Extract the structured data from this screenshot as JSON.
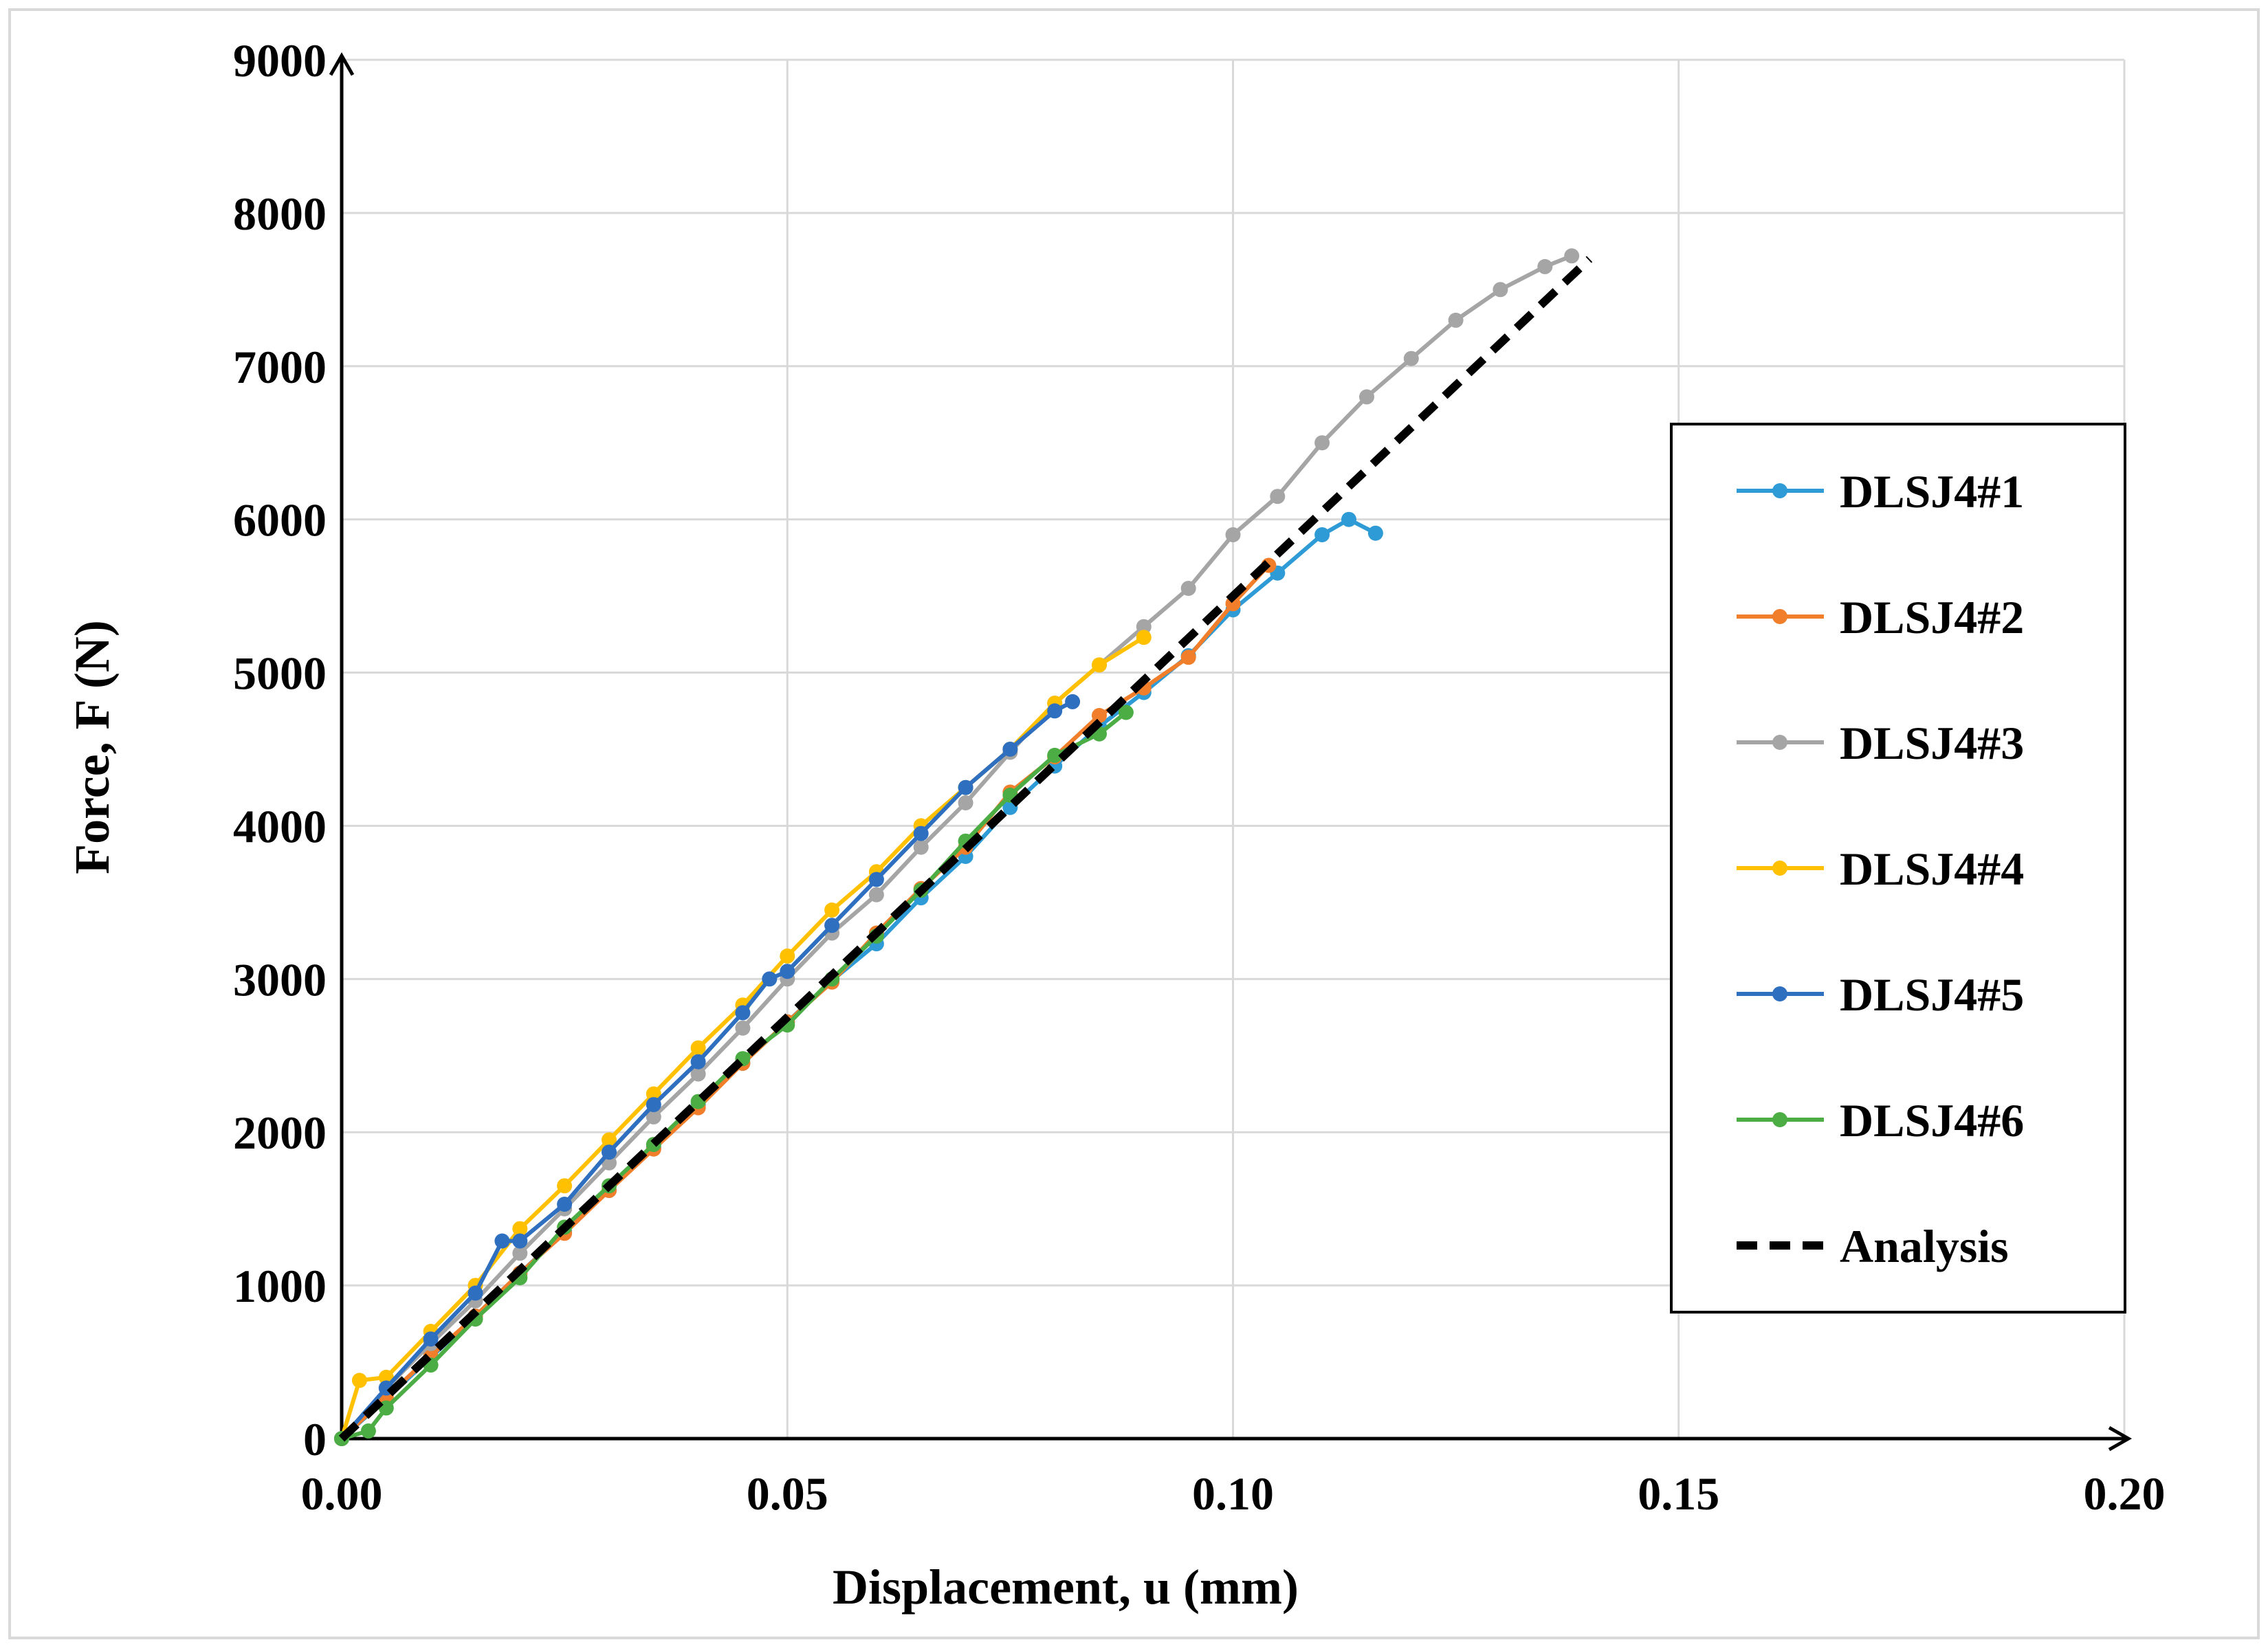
{
  "chart_data": {
    "type": "line",
    "title": "",
    "xlabel": "Displacement, u (mm)",
    "ylabel": "Force, F (N)",
    "xlim": [
      0,
      0.2
    ],
    "ylim": [
      0,
      9000
    ],
    "x_ticks": [
      0,
      0.05,
      0.1,
      0.15,
      0.2
    ],
    "x_tick_labels": [
      "0.00",
      "0.05",
      "0.10",
      "0.15",
      "0.20"
    ],
    "y_ticks": [
      0,
      1000,
      2000,
      3000,
      4000,
      5000,
      6000,
      7000,
      8000,
      9000
    ],
    "y_tick_labels": [
      "0",
      "1000",
      "2000",
      "3000",
      "4000",
      "5000",
      "6000",
      "7000",
      "8000",
      "9000"
    ],
    "grid": true,
    "legend_position": "right",
    "series": [
      {
        "name": "DLSJ4#1",
        "color": "#2E9BD6",
        "style": "line-marker",
        "x": [
          0,
          0.005,
          0.01,
          0.015,
          0.02,
          0.025,
          0.03,
          0.035,
          0.04,
          0.045,
          0.05,
          0.055,
          0.06,
          0.065,
          0.07,
          0.075,
          0.08,
          0.085,
          0.09,
          0.095,
          0.1,
          0.105,
          0.11,
          0.113,
          0.116
        ],
        "y": [
          0,
          260,
          530,
          800,
          1080,
          1350,
          1620,
          1900,
          2180,
          2450,
          2720,
          2990,
          3230,
          3530,
          3800,
          4120,
          4390,
          4650,
          4870,
          5110,
          5410,
          5650,
          5900,
          6000,
          5910
        ]
      },
      {
        "name": "DLSJ4#2",
        "color": "#F07E2A",
        "style": "line-marker",
        "x": [
          0,
          0.005,
          0.01,
          0.015,
          0.02,
          0.025,
          0.03,
          0.035,
          0.04,
          0.045,
          0.05,
          0.055,
          0.06,
          0.065,
          0.07,
          0.075,
          0.08,
          0.085,
          0.09,
          0.095,
          0.1,
          0.104
        ],
        "y": [
          0,
          270,
          540,
          800,
          1080,
          1340,
          1620,
          1890,
          2160,
          2450,
          2720,
          2980,
          3300,
          3590,
          3860,
          4220,
          4450,
          4720,
          4900,
          5100,
          5450,
          5700
        ]
      },
      {
        "name": "DLSJ4#3",
        "color": "#A5A5A5",
        "style": "line-marker",
        "x": [
          0,
          0.005,
          0.01,
          0.015,
          0.02,
          0.025,
          0.03,
          0.035,
          0.04,
          0.045,
          0.05,
          0.055,
          0.06,
          0.065,
          0.07,
          0.075,
          0.08,
          0.085,
          0.09,
          0.095,
          0.1,
          0.105,
          0.11,
          0.115,
          0.12,
          0.125,
          0.13,
          0.135,
          0.138
        ],
        "y": [
          0,
          330,
          620,
          900,
          1210,
          1500,
          1800,
          2100,
          2380,
          2680,
          3000,
          3300,
          3550,
          3860,
          4150,
          4480,
          4800,
          5050,
          5300,
          5550,
          5900,
          6150,
          6500,
          6800,
          7050,
          7300,
          7500,
          7650,
          7720
        ]
      },
      {
        "name": "DLSJ4#4",
        "color": "#FFC000",
        "style": "line-marker",
        "x": [
          0,
          0.002,
          0.005,
          0.01,
          0.015,
          0.02,
          0.025,
          0.03,
          0.035,
          0.04,
          0.045,
          0.05,
          0.055,
          0.06,
          0.065,
          0.07,
          0.075,
          0.08,
          0.085,
          0.09
        ],
        "y": [
          0,
          380,
          400,
          700,
          1000,
          1370,
          1650,
          1950,
          2250,
          2550,
          2830,
          3150,
          3450,
          3700,
          4000,
          4250,
          4500,
          4800,
          5050,
          5230
        ]
      },
      {
        "name": "DLSJ4#5",
        "color": "#2E6FC0",
        "style": "line-marker",
        "x": [
          0,
          0.005,
          0.01,
          0.015,
          0.018,
          0.02,
          0.025,
          0.03,
          0.035,
          0.04,
          0.045,
          0.048,
          0.05,
          0.055,
          0.06,
          0.065,
          0.07,
          0.075,
          0.08,
          0.082
        ],
        "y": [
          0,
          330,
          650,
          950,
          1290,
          1290,
          1530,
          1870,
          2180,
          2460,
          2780,
          3000,
          3050,
          3350,
          3650,
          3950,
          4250,
          4500,
          4750,
          4810
        ]
      },
      {
        "name": "DLSJ4#6",
        "color": "#4CAD45",
        "style": "line-marker",
        "x": [
          0,
          0.003,
          0.005,
          0.01,
          0.015,
          0.02,
          0.025,
          0.03,
          0.035,
          0.04,
          0.045,
          0.05,
          0.055,
          0.06,
          0.065,
          0.07,
          0.075,
          0.08,
          0.085,
          0.088
        ],
        "y": [
          0,
          50,
          200,
          480,
          780,
          1050,
          1380,
          1650,
          1920,
          2200,
          2480,
          2700,
          3000,
          3280,
          3580,
          3900,
          4200,
          4460,
          4600,
          4740
        ]
      },
      {
        "name": "Analysis",
        "color": "#000000",
        "style": "dashed",
        "x": [
          0,
          0.14
        ],
        "y": [
          0,
          7700
        ]
      }
    ]
  }
}
